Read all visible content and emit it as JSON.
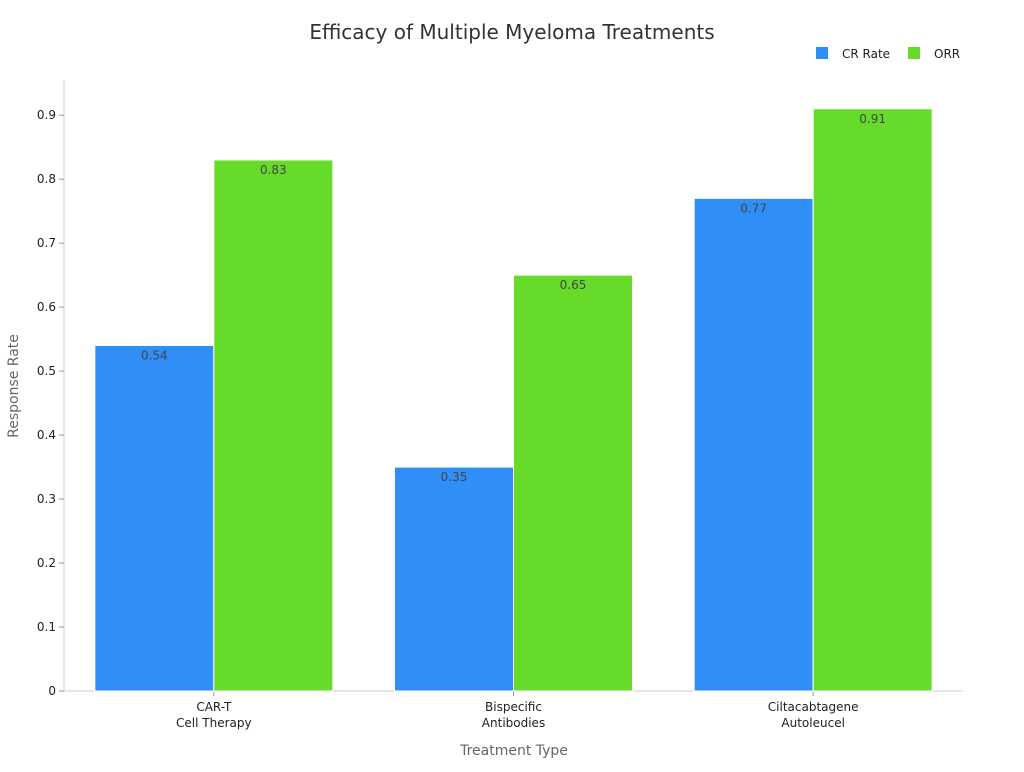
{
  "chart_data": {
    "type": "bar",
    "title": "Efficacy of Multiple Myeloma Treatments",
    "xlabel": "Treatment Type",
    "ylabel": "Response Rate",
    "categories": [
      [
        "CAR-T",
        "Cell Therapy"
      ],
      [
        "Bispecific",
        "Antibodies"
      ],
      [
        "Ciltacabtagene",
        "Autoleucel"
      ]
    ],
    "series": [
      {
        "name": "CR Rate",
        "values": [
          0.54,
          0.35,
          0.77
        ],
        "color": "#2f8ff7"
      },
      {
        "name": "ORR",
        "values": [
          0.83,
          0.65,
          0.91
        ],
        "color": "#66db29"
      }
    ],
    "ylim": [
      0,
      0.955
    ],
    "yticks": [
      "0",
      "0.1",
      "0.2",
      "0.3",
      "0.4",
      "0.5",
      "0.6",
      "0.7",
      "0.8",
      "0.9"
    ],
    "grid": false,
    "legend_position": "top-right"
  }
}
